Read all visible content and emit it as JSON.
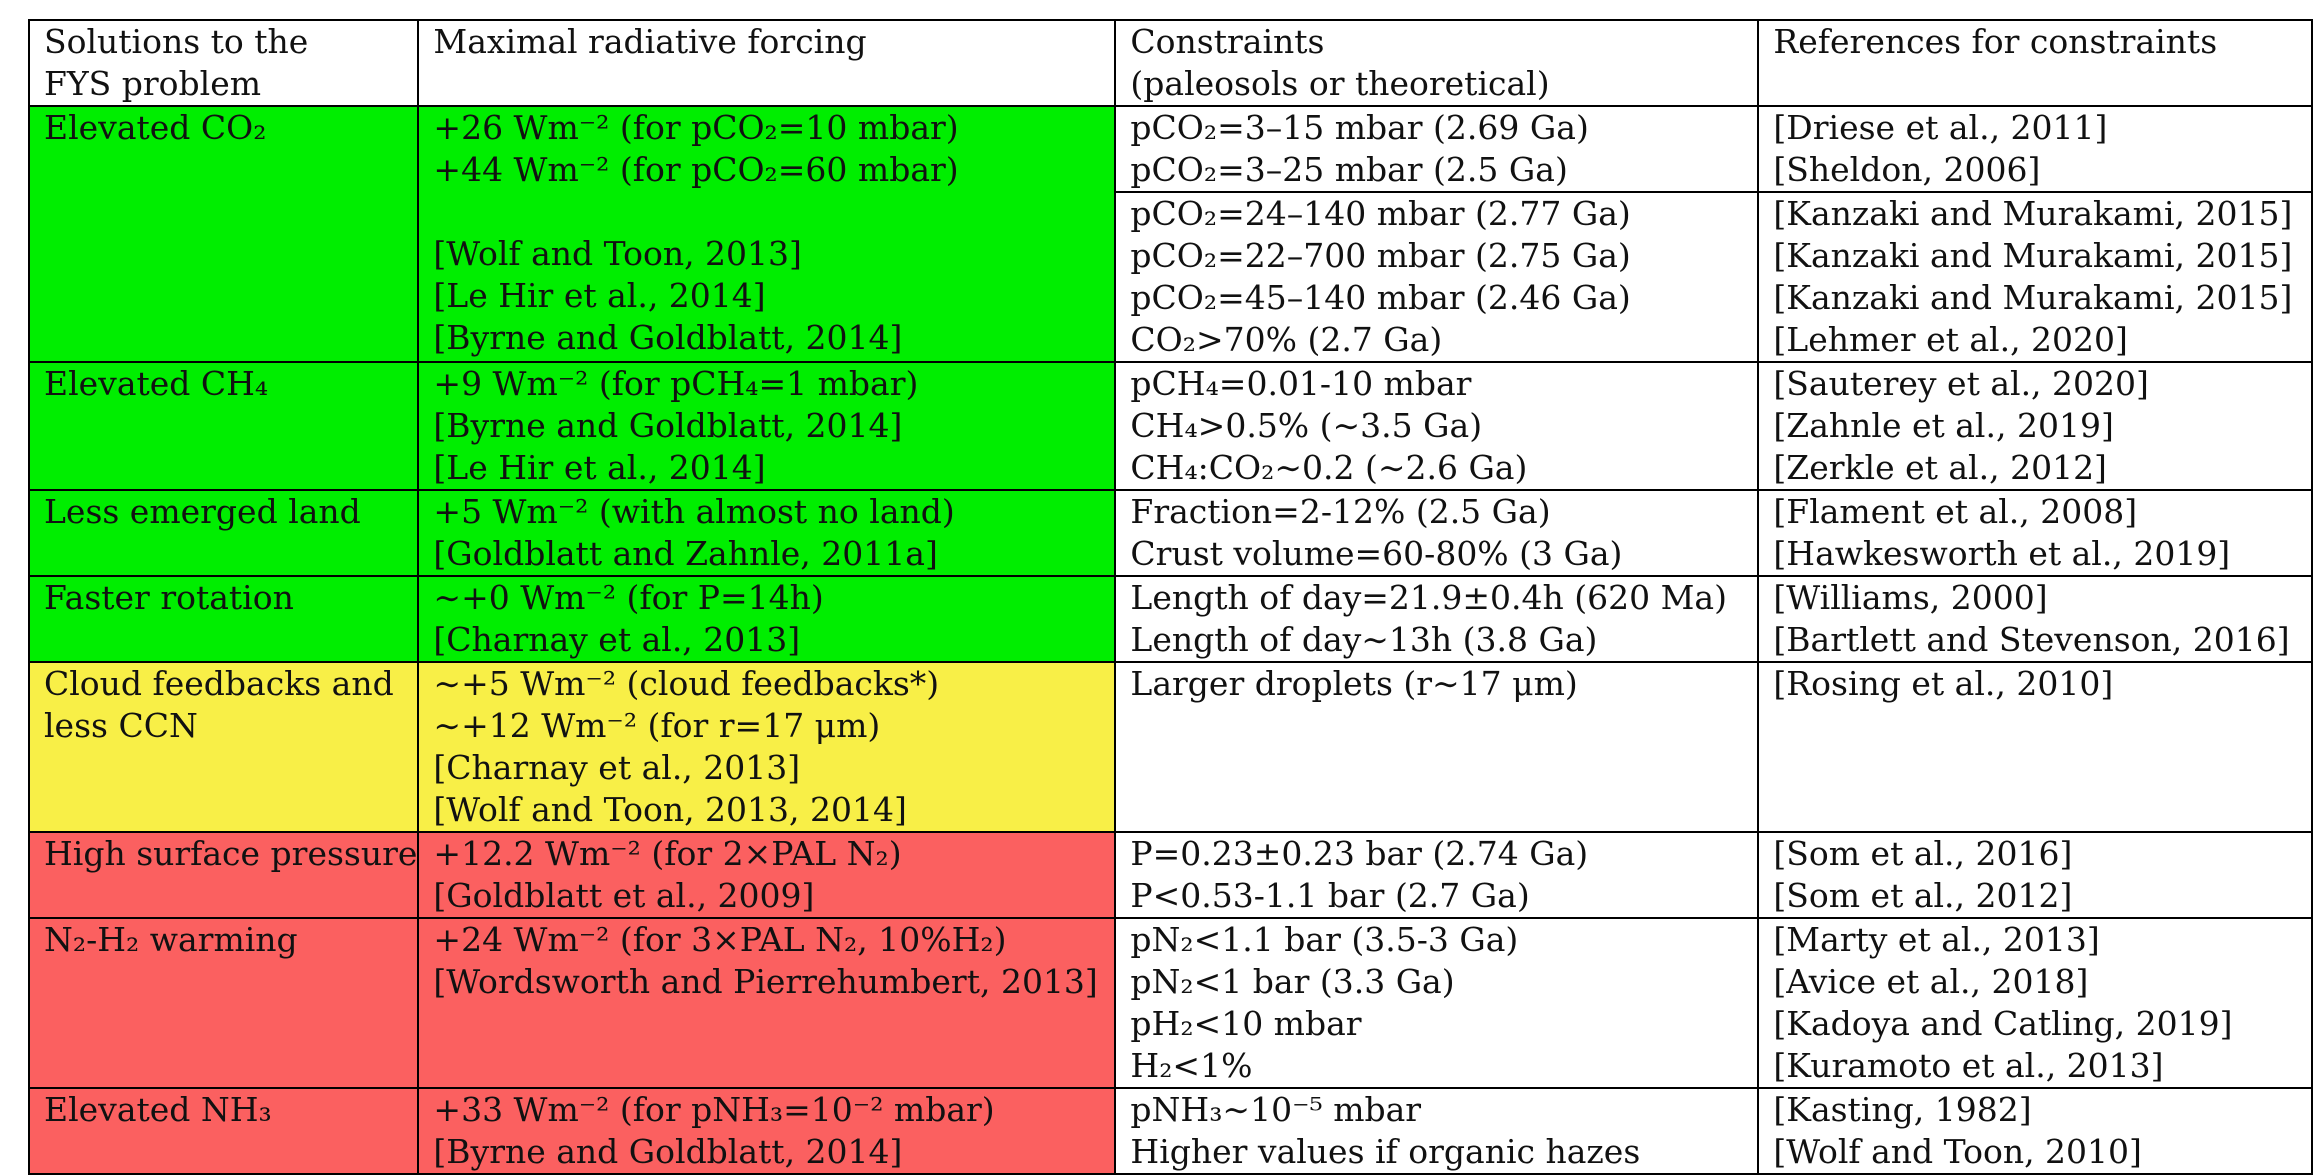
{
  "colors": {
    "green": "#00ee00",
    "yellow": "#f8ef47",
    "red": "#fb6060"
  },
  "header": {
    "col1": [
      "Solutions to the",
      "FYS problem"
    ],
    "col2": [
      "Maximal radiative forcing"
    ],
    "col3": [
      "Constraints",
      "(paleosols or theoretical)"
    ],
    "col4": [
      "References for constraints"
    ]
  },
  "rows": [
    {
      "color": "green",
      "solution": [
        "Elevated CO₂"
      ],
      "forcing": [
        "+26 Wm⁻² (for pCO₂=10 mbar)",
        "+44 Wm⁻² (for pCO₂=60 mbar)",
        "",
        "[Wolf and Toon, 2013]",
        "[Le Hir et al., 2014]",
        "[Byrne and Goldblatt, 2014]"
      ],
      "constraint_groups": [
        {
          "constraints": [
            "pCO₂=3–15 mbar (2.69 Ga)",
            "pCO₂=3–25 mbar (2.5 Ga)"
          ],
          "refs": [
            "[Driese et al., 2011]",
            "[Sheldon, 2006]"
          ]
        },
        {
          "constraints": [
            "pCO₂=24–140 mbar (2.77 Ga)",
            "pCO₂=22–700 mbar (2.75 Ga)",
            "pCO₂=45–140 mbar (2.46 Ga)",
            "CO₂>70% (2.7 Ga)"
          ],
          "refs": [
            "[Kanzaki and Murakami, 2015]",
            "[Kanzaki and Murakami, 2015]",
            "[Kanzaki and Murakami, 2015]",
            "[Lehmer et al., 2020]"
          ]
        }
      ]
    },
    {
      "color": "green",
      "solution": [
        "Elevated CH₄"
      ],
      "forcing": [
        "+9 Wm⁻² (for pCH₄=1 mbar)",
        "[Byrne and Goldblatt, 2014]",
        "[Le Hir et al., 2014]"
      ],
      "constraints": [
        "pCH₄=0.01-10 mbar",
        "CH₄>0.5% (∼3.5 Ga)",
        "CH₄:CO₂∼0.2 (∼2.6 Ga)"
      ],
      "refs": [
        "[Sauterey et al., 2020]",
        "[Zahnle et al., 2019]",
        "[Zerkle et al., 2012]"
      ]
    },
    {
      "color": "green",
      "solution": [
        "Less emerged land"
      ],
      "forcing": [
        "+5 Wm⁻² (with almost no land)",
        "[Goldblatt and Zahnle, 2011a]"
      ],
      "constraints": [
        "Fraction=2-12% (2.5 Ga)",
        "Crust volume=60-80% (3 Ga)"
      ],
      "refs": [
        "[Flament et al., 2008]",
        "[Hawkesworth et al., 2019]"
      ]
    },
    {
      "color": "green",
      "solution": [
        "Faster rotation"
      ],
      "forcing": [
        "∼+0 Wm⁻² (for P=14h)",
        "[Charnay et al., 2013]"
      ],
      "constraints": [
        "Length of day=21.9±0.4h (620 Ma)",
        "Length of day∼13h (3.8 Ga)"
      ],
      "refs": [
        "[Williams, 2000]",
        "[Bartlett and Stevenson, 2016]"
      ]
    },
    {
      "color": "yellow",
      "solution": [
        "Cloud feedbacks and",
        "less CCN"
      ],
      "forcing": [
        "∼+5 Wm⁻² (cloud feedbacks*)",
        "∼+12 Wm⁻² (for r=17 μm)",
        "[Charnay et al., 2013]",
        "[Wolf and Toon, 2013, 2014]"
      ],
      "constraints": [
        "Larger droplets (r∼17 μm)"
      ],
      "refs": [
        "[Rosing et al., 2010]"
      ]
    },
    {
      "color": "red",
      "solution": [
        "High surface pressure"
      ],
      "forcing": [
        "+12.2 Wm⁻² (for 2×PAL N₂)",
        "[Goldblatt et al., 2009]"
      ],
      "constraints": [
        "P=0.23±0.23 bar (2.74 Ga)",
        "P<0.53-1.1 bar (2.7 Ga)"
      ],
      "refs": [
        "[Som et al., 2016]",
        "[Som et al., 2012]"
      ]
    },
    {
      "color": "red",
      "solution": [
        "N₂-H₂ warming"
      ],
      "forcing": [
        " +24 Wm⁻² (for 3×PAL N₂, 10%H₂)",
        "[Wordsworth and Pierrehumbert, 2013]"
      ],
      "constraints": [
        "pN₂<1.1 bar (3.5-3 Ga)",
        "pN₂<1 bar (3.3 Ga)",
        "pH₂<10 mbar",
        "H₂<1%"
      ],
      "refs": [
        "[Marty et al., 2013]",
        "[Avice et al., 2018]",
        "[Kadoya and Catling, 2019]",
        "[Kuramoto et al., 2013]"
      ]
    },
    {
      "color": "red",
      "solution": [
        "Elevated NH₃"
      ],
      "forcing": [
        "+33 Wm⁻² (for pNH₃=10⁻² mbar)",
        "[Byrne and Goldblatt, 2014]"
      ],
      "constraints": [
        "pNH₃∼10⁻⁵ mbar",
        "Higher values if organic hazes"
      ],
      "refs": [
        "[Kasting, 1982]",
        "[Wolf and Toon, 2010]"
      ]
    }
  ]
}
